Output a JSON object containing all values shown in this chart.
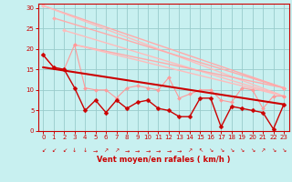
{
  "background_color": "#c8f0f0",
  "grid_color": "#99cccc",
  "xlabel": "Vent moyen/en rafales ( km/h )",
  "xlim": [
    -0.5,
    23.5
  ],
  "ylim": [
    0,
    31
  ],
  "yticks": [
    0,
    5,
    10,
    15,
    20,
    25,
    30
  ],
  "xticks": [
    0,
    1,
    2,
    3,
    4,
    5,
    6,
    7,
    8,
    9,
    10,
    11,
    12,
    13,
    14,
    15,
    16,
    17,
    18,
    19,
    20,
    21,
    22,
    23
  ],
  "line_top_upper": {
    "x": [
      0,
      23
    ],
    "y": [
      30.5,
      10.5
    ],
    "color": "#ffaaaa",
    "lw": 1.0,
    "marker": "D",
    "ms": 2.0
  },
  "line_top_lower": {
    "x": [
      0,
      23
    ],
    "y": [
      30.5,
      8.5
    ],
    "color": "#ffbbbb",
    "lw": 1.0,
    "marker": "D",
    "ms": 2.0
  },
  "line_mid_upper": {
    "x": [
      1,
      23
    ],
    "y": [
      27.5,
      10.5
    ],
    "color": "#ffaaaa",
    "lw": 1.0,
    "marker": "D",
    "ms": 2.0
  },
  "line_mid_lower": {
    "x": [
      2,
      23
    ],
    "y": [
      24.5,
      8.5
    ],
    "color": "#ffbbbb",
    "lw": 1.0,
    "marker": "D",
    "ms": 2.0
  },
  "line_bot_upper": {
    "x": [
      3,
      23
    ],
    "y": [
      21.0,
      10.5
    ],
    "color": "#ffaaaa",
    "lw": 1.0,
    "marker": "D",
    "ms": 2.0
  },
  "line_bot_lower": {
    "x": [
      3,
      23
    ],
    "y": [
      21.0,
      8.5
    ],
    "color": "#ffbbbb",
    "lw": 1.0,
    "marker": "D",
    "ms": 2.0
  },
  "line_scatter_pink": {
    "x": [
      0,
      1,
      2,
      3,
      4,
      5,
      6,
      7,
      8,
      9,
      10,
      11,
      12,
      13,
      14,
      15,
      16,
      17,
      18,
      19,
      20,
      21,
      22,
      23
    ],
    "y": [
      18.5,
      15.5,
      15,
      21,
      10.5,
      10,
      10,
      8,
      10.5,
      11,
      10.5,
      10,
      13,
      8,
      9,
      10,
      10,
      7.5,
      7,
      10.5,
      10,
      5.5,
      8.5,
      8.5
    ],
    "color": "#ff9999",
    "lw": 0.8,
    "marker": "D",
    "ms": 2.0
  },
  "line_trend": {
    "x": [
      0,
      23
    ],
    "y": [
      15.5,
      6.5
    ],
    "color": "#cc0000",
    "lw": 1.5,
    "marker": null,
    "ms": 0
  },
  "line_scatter_dark": {
    "x": [
      0,
      1,
      2,
      3,
      4,
      5,
      6,
      7,
      8,
      9,
      10,
      11,
      12,
      13,
      14,
      15,
      16,
      17,
      18,
      19,
      20,
      21,
      22,
      23
    ],
    "y": [
      18.5,
      15.5,
      15,
      10.5,
      5,
      7.5,
      4.5,
      7.5,
      5.5,
      7,
      7.5,
      5.5,
      5,
      3.5,
      3.5,
      8,
      8,
      1,
      6,
      5.5,
      5,
      4.5,
      0.5,
      6.5
    ],
    "color": "#cc0000",
    "lw": 1.0,
    "marker": "D",
    "ms": 2.5
  },
  "wind_arrows": [
    225,
    225,
    225,
    270,
    270,
    0,
    45,
    45,
    0,
    0,
    0,
    0,
    0,
    0,
    45,
    135,
    315,
    315,
    315,
    315,
    315,
    45,
    315,
    315
  ]
}
